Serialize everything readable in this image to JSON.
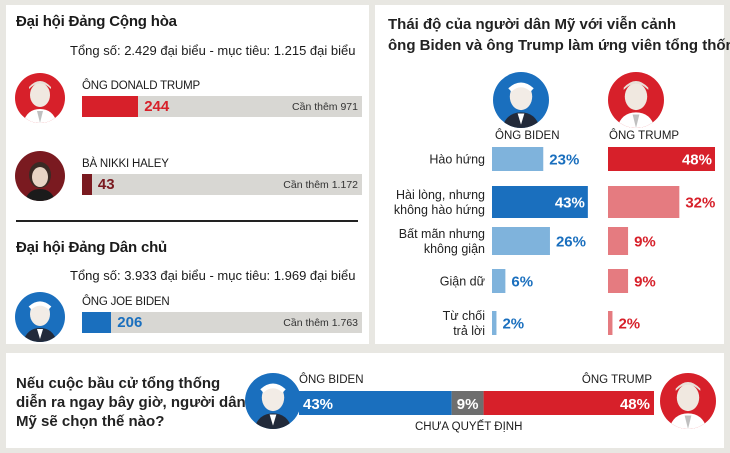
{
  "colors": {
    "trump_red": "#d7202a",
    "haley_red": "#7a1a20",
    "biden_blue": "#1a6fbe",
    "light_blue": "#7fb3dc",
    "light_red": "#e57b80",
    "track": "#d8d7d3",
    "undecided": "#6e6e6e"
  },
  "left": {
    "rep": {
      "title": "Đại hội Đảng Cộng hòa",
      "total": "Tổng số: 2.429 đại biểu - mục tiêu: 1.215 đại biểu",
      "candidates": [
        {
          "name": "ÔNG DONALD TRUMP",
          "value": 244,
          "need": "Cần thêm 971",
          "avatar_icon": "trump-portrait-icon"
        },
        {
          "name": "BÀ NIKKI HALEY",
          "value": 43,
          "need": "Cần thêm 1.172",
          "avatar_icon": "haley-portrait-icon"
        }
      ]
    },
    "dem": {
      "title": "Đại hội Đảng Dân chủ",
      "total": "Tổng số: 3.933 đại biểu - mục tiêu: 1.969 đại biểu",
      "candidates": [
        {
          "name": "ÔNG JOE BIDEN",
          "value": 206,
          "need": "Cần thêm 1.763",
          "avatar_icon": "biden-portrait-icon"
        }
      ]
    }
  },
  "right": {
    "title_line1": "Thái độ của người dân Mỹ với viễn cảnh",
    "title_line2": "ông Biden và ông Trump làm ứng viên tổng thống",
    "col_biden": "ÔNG BIDEN",
    "col_trump": "ÔNG TRUMP"
  },
  "bottom": {
    "question_line1": "Nếu cuộc bầu cử tổng thống",
    "question_line2": "diễn ra ngay bây giờ, người dân",
    "question_line3": "Mỹ sẽ chọn thế nào?",
    "biden_label": "ÔNG BIDEN",
    "trump_label": "ÔNG TRUMP",
    "undecided_label": "CHƯA QUYẾT ĐỊNH"
  },
  "chart_data": [
    {
      "type": "bar",
      "title": "Đại hội Đảng Cộng hòa",
      "categories": [
        "ÔNG DONALD TRUMP",
        "BÀ NIKKI HALEY"
      ],
      "values": [
        244,
        43
      ],
      "xlim": [
        0,
        1215
      ]
    },
    {
      "type": "bar",
      "title": "Đại hội Đảng Dân chủ",
      "categories": [
        "ÔNG JOE BIDEN"
      ],
      "values": [
        206
      ],
      "xlim": [
        0,
        1969
      ]
    },
    {
      "type": "bar",
      "title": "Thái độ của người dân Mỹ với viễn cảnh ông Biden và ông Trump làm ứng viên tổng thống",
      "categories": [
        "Hào hứng",
        "Hài lòng, nhưng|không hào hứng",
        "Bất mãn nhưng|không giận",
        "Giận dữ",
        "Từ chối|trả lời"
      ],
      "series": [
        {
          "name": "ÔNG BIDEN",
          "values": [
            23,
            43,
            26,
            6,
            2
          ],
          "labels": [
            "23%",
            "43%",
            "26%",
            "6%",
            "2%"
          ],
          "colors": [
            "#7fb3dc",
            "#1a6fbe",
            "#7fb3dc",
            "#7fb3dc",
            "#7fb3dc"
          ]
        },
        {
          "name": "ÔNG TRUMP",
          "values": [
            48,
            32,
            9,
            9,
            2
          ],
          "labels": [
            "48%",
            "32%",
            "9%",
            "9%",
            "2%"
          ],
          "colors": [
            "#d7202a",
            "#e57b80",
            "#e57b80",
            "#e57b80",
            "#e57b80"
          ]
        }
      ],
      "xlim": [
        0,
        48
      ]
    },
    {
      "type": "bar",
      "title": "Nếu cuộc bầu cử tổng thống diễn ra ngay bây giờ, người dân Mỹ sẽ chọn thế nào?",
      "categories": [
        "ÔNG BIDEN",
        "CHƯA QUYẾT ĐỊNH",
        "ÔNG TRUMP"
      ],
      "values": [
        43,
        9,
        48
      ],
      "labels": [
        "43%",
        "9%",
        "48%"
      ]
    }
  ]
}
